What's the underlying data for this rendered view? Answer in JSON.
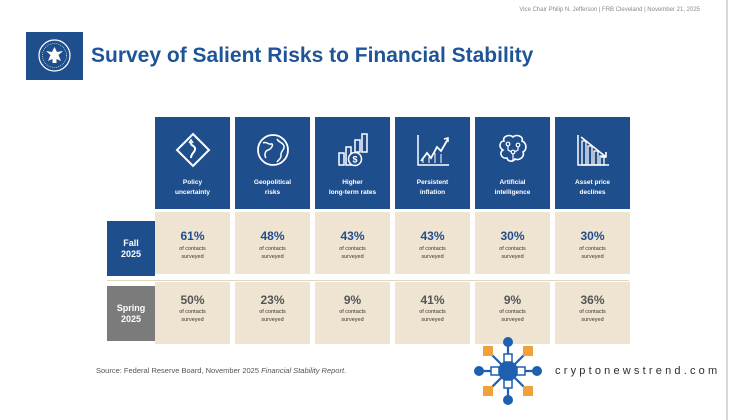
{
  "header": {
    "meta": "Vice Chair Philip N. Jefferson | FRB Cleveland | November 21, 2025",
    "title": "Survey of Salient Risks to Financial Stability"
  },
  "rows": {
    "fall": "Fall\n2025",
    "spring": "Spring\n2025"
  },
  "columns": [
    {
      "label": "Policy\nuncertainty",
      "icon": "road-sign-icon",
      "fall": "61%",
      "spring": "50%"
    },
    {
      "label": "Geopolitical\nrisks",
      "icon": "globe-icon",
      "fall": "48%",
      "spring": "23%"
    },
    {
      "label": "Higher\nlong-term rates",
      "icon": "rising-bars-dollar-icon",
      "fall": "43%",
      "spring": "9%"
    },
    {
      "label": "Persistent\ninflation",
      "icon": "rising-line-chart-icon",
      "fall": "43%",
      "spring": "41%"
    },
    {
      "label": "Artificial\nintelligence",
      "icon": "brain-circuit-icon",
      "fall": "30%",
      "spring": "9%"
    },
    {
      "label": "Asset price\ndeclines",
      "icon": "falling-bars-icon",
      "fall": "30%",
      "spring": "36%"
    }
  ],
  "cell_sub": {
    "line1": "of contacts",
    "line2": "surveyed"
  },
  "source": {
    "prefix": "Source: Federal Reserve Board, November 2025 ",
    "report": "Financial Stability Report",
    "suffix": "."
  },
  "watermark": {
    "text": "cryptonewstrend.com",
    "logo_icon": "network-hub-icon"
  },
  "colors": {
    "navy": "#1f4e8c",
    "gray": "#7b7b7b",
    "beige": "#efe4d2",
    "title_blue": "#1f5596",
    "watermark_blue": "#1e5fb0",
    "watermark_orange": "#f0a23a"
  }
}
